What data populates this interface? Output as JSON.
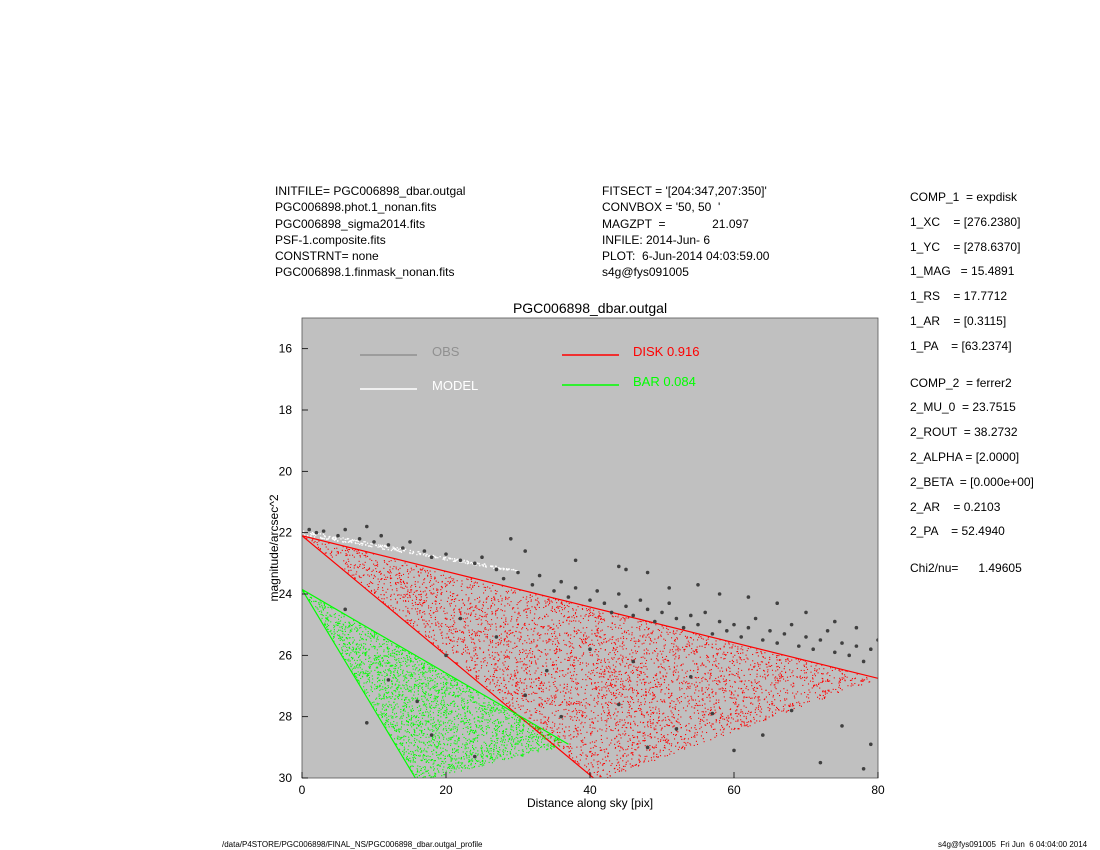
{
  "header": {
    "left": [
      "INITFILE= PGC006898_dbar.outgal",
      "PGC006898.phot.1_nonan.fits",
      "PGC006898_sigma2014.fits",
      "PSF-1.composite.fits",
      "CONSTRNT= none",
      "PGC006898.1.finmask_nonan.fits"
    ],
    "middle": [
      "FITSECT = '[204:347,207:350]'",
      "CONVBOX = '50, 50  '",
      "MAGZPT  =              21.097",
      "INFILE: 2014-Jun- 6",
      "PLOT:  6-Jun-2014 04:03:59.00",
      "s4g@fys091005"
    ]
  },
  "params": {
    "comp1": [
      "COMP_1  = expdisk",
      "1_XC    = [276.2380]",
      "1_YC    = [278.6370]",
      "1_MAG   = 15.4891",
      "1_RS    = 17.7712",
      "1_AR    = [0.3115]",
      "1_PA    = [63.2374]"
    ],
    "comp2": [
      "COMP_2  = ferrer2",
      "2_MU_0  = 23.7515",
      "2_ROUT  = 38.2732",
      "2_ALPHA = [2.0000]",
      "2_BETA  = [0.000e+00]",
      "2_AR    = 0.2103",
      "2_PA    = 52.4940"
    ],
    "chi": "Chi2/nu=      1.49605"
  },
  "footer": {
    "left": "/data/P4STORE/PGC006898/FINAL_NS/PGC006898_dbar.outgal_profile",
    "right": "s4g@fys091005  Fri Jun  6 04:04:00 2014"
  },
  "colors": {
    "panel": "#c0c0c0",
    "obs": "#404040",
    "model": "#ffffff",
    "disk": "#ff0000",
    "bar": "#00ff00",
    "obs_legend": "#909090"
  },
  "chart_data": {
    "type": "scatter",
    "title": "PGC006898_dbar.outgal",
    "xlabel": "Distance along sky [pix]",
    "ylabel": "magnitude/arcsec^2",
    "xlim": [
      0,
      80
    ],
    "ylim": [
      30,
      15
    ],
    "y_inverted": true,
    "xticks": [
      0,
      20,
      40,
      60,
      80
    ],
    "yticks": [
      16,
      18,
      20,
      22,
      24,
      26,
      28,
      30
    ],
    "legend": [
      {
        "label": "OBS",
        "color": "#909090"
      },
      {
        "label": "MODEL",
        "color": "#ffffff"
      },
      {
        "label": "DISK  0.916",
        "color": "#ff0000"
      },
      {
        "label": "BAR  0.084",
        "color": "#00ff00"
      }
    ],
    "series": [
      {
        "name": "DISK",
        "kind": "fan",
        "start": [
          0,
          22.1
        ],
        "upper_end": [
          80,
          26.75
        ],
        "lower_end": [
          41,
          30.1
        ]
      },
      {
        "name": "BAR",
        "kind": "fan",
        "start": [
          0,
          23.85
        ],
        "upper_end": [
          37,
          28.9
        ],
        "lower_end": [
          16,
          30.1
        ]
      },
      {
        "name": "MODEL",
        "kind": "band",
        "start": [
          0,
          21.9
        ],
        "end": [
          30,
          23.2
        ]
      },
      {
        "name": "OBS",
        "kind": "points",
        "points": [
          [
            1,
            21.9
          ],
          [
            2,
            22.0
          ],
          [
            3,
            21.95
          ],
          [
            5,
            22.1
          ],
          [
            6,
            21.9
          ],
          [
            8,
            22.2
          ],
          [
            9,
            21.8
          ],
          [
            10,
            22.3
          ],
          [
            11,
            22.1
          ],
          [
            12,
            22.4
          ],
          [
            14,
            22.5
          ],
          [
            15,
            22.3
          ],
          [
            17,
            22.6
          ],
          [
            18,
            22.8
          ],
          [
            20,
            22.7
          ],
          [
            22,
            22.9
          ],
          [
            24,
            23.0
          ],
          [
            25,
            22.8
          ],
          [
            27,
            23.2
          ],
          [
            28,
            23.5
          ],
          [
            30,
            23.3
          ],
          [
            31,
            22.6
          ],
          [
            32,
            23.7
          ],
          [
            33,
            23.4
          ],
          [
            35,
            23.9
          ],
          [
            36,
            23.6
          ],
          [
            37,
            24.1
          ],
          [
            38,
            23.8
          ],
          [
            40,
            24.2
          ],
          [
            41,
            23.9
          ],
          [
            42,
            24.3
          ],
          [
            43,
            24.6
          ],
          [
            44,
            24.0
          ],
          [
            45,
            24.4
          ],
          [
            46,
            24.7
          ],
          [
            47,
            24.2
          ],
          [
            48,
            24.5
          ],
          [
            49,
            24.9
          ],
          [
            50,
            24.6
          ],
          [
            51,
            24.3
          ],
          [
            52,
            24.8
          ],
          [
            53,
            25.1
          ],
          [
            54,
            24.7
          ],
          [
            55,
            25.0
          ],
          [
            56,
            24.6
          ],
          [
            57,
            25.3
          ],
          [
            58,
            24.9
          ],
          [
            59,
            25.2
          ],
          [
            60,
            25.0
          ],
          [
            61,
            25.4
          ],
          [
            62,
            25.1
          ],
          [
            63,
            24.8
          ],
          [
            64,
            25.5
          ],
          [
            65,
            25.2
          ],
          [
            66,
            25.6
          ],
          [
            67,
            25.3
          ],
          [
            68,
            25.0
          ],
          [
            69,
            25.7
          ],
          [
            70,
            25.4
          ],
          [
            71,
            25.8
          ],
          [
            72,
            25.5
          ],
          [
            73,
            25.2
          ],
          [
            74,
            25.9
          ],
          [
            75,
            25.6
          ],
          [
            76,
            26.0
          ],
          [
            77,
            25.7
          ],
          [
            78,
            26.2
          ],
          [
            79,
            25.8
          ],
          [
            80,
            25.5
          ],
          [
            45,
            23.2
          ],
          [
            48,
            23.3
          ],
          [
            44,
            23.1
          ],
          [
            38,
            22.9
          ],
          [
            29,
            22.2
          ],
          [
            51,
            23.8
          ],
          [
            58,
            24.0
          ],
          [
            62,
            24.1
          ],
          [
            55,
            23.7
          ],
          [
            66,
            24.3
          ],
          [
            70,
            24.6
          ],
          [
            74,
            24.9
          ],
          [
            77,
            25.1
          ],
          [
            12,
            26.8
          ],
          [
            16,
            27.5
          ],
          [
            9,
            28.2
          ],
          [
            20,
            26.0
          ],
          [
            24,
            29.3
          ],
          [
            34,
            26.5
          ],
          [
            36,
            28.0
          ],
          [
            44,
            27.6
          ],
          [
            48,
            29.0
          ],
          [
            52,
            28.4
          ],
          [
            57,
            27.9
          ],
          [
            60,
            29.1
          ],
          [
            64,
            28.6
          ],
          [
            68,
            27.8
          ],
          [
            72,
            29.5
          ],
          [
            75,
            28.3
          ],
          [
            78,
            29.7
          ],
          [
            79,
            28.9
          ],
          [
            31,
            27.3
          ],
          [
            27,
            25.4
          ],
          [
            22,
            24.8
          ],
          [
            6,
            24.5
          ],
          [
            18,
            28.6
          ],
          [
            40,
            25.8
          ],
          [
            54,
            26.7
          ],
          [
            46,
            26.2
          ]
        ]
      }
    ]
  }
}
